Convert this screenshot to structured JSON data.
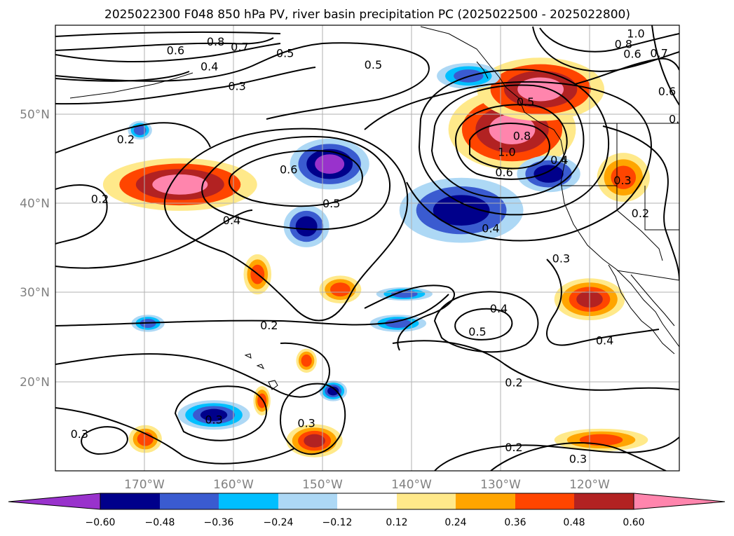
{
  "title": "2025022300 F048 850 hPa PV, river basin precipitation PC (2025022500 - 2025022800)",
  "colors": {
    "levels": [
      "#9932cc",
      "#00008b",
      "#3a5bd0",
      "#00bfff",
      "#add8f5",
      "#ffffff",
      "#ffe98a",
      "#ffa500",
      "#ff4500",
      "#b22222",
      "#ff85ad"
    ],
    "contour": "#000000",
    "grid": "#b0b0b0",
    "tick_text": "#808080"
  },
  "chart_data": {
    "type": "map",
    "projection": "lat-lon",
    "lon_ticks": [
      "170°W",
      "160°W",
      "150°W",
      "140°W",
      "130°W",
      "120°W"
    ],
    "lat_ticks": [
      "50°N",
      "40°N",
      "30°N",
      "20°N"
    ],
    "grid": true,
    "colorbar": {
      "ticks": [
        "−0.60",
        "−0.48",
        "−0.36",
        "−0.24",
        "−0.12",
        "0.12",
        "0.24",
        "0.36",
        "0.48",
        "0.60"
      ],
      "extend": "both"
    },
    "contour_labels": [
      {
        "text": "0.8",
        "lon": -162,
        "lat": 58.2
      },
      {
        "text": "0.7",
        "lon": -159.3,
        "lat": 57.6
      },
      {
        "text": "0.6",
        "lon": -166.5,
        "lat": 57.2
      },
      {
        "text": "0.5",
        "lon": -154.2,
        "lat": 56.9
      },
      {
        "text": "0.4",
        "lon": -162.7,
        "lat": 55.4
      },
      {
        "text": "0.3",
        "lon": -159.6,
        "lat": 53.2
      },
      {
        "text": "0.5",
        "lon": -144.3,
        "lat": 55.6
      },
      {
        "text": "1.0",
        "lon": -114.8,
        "lat": 59.1
      },
      {
        "text": "0.8",
        "lon": -116.2,
        "lat": 57.9
      },
      {
        "text": "0.7",
        "lon": -112.2,
        "lat": 56.9
      },
      {
        "text": "0.6",
        "lon": -115.2,
        "lat": 56.8
      },
      {
        "text": "0.6",
        "lon": -111.3,
        "lat": 52.6
      },
      {
        "text": "0.",
        "lon": -110.5,
        "lat": 49.5
      },
      {
        "text": "0.5",
        "lon": -127.2,
        "lat": 51.4
      },
      {
        "text": "0.8",
        "lon": -127.6,
        "lat": 47.6
      },
      {
        "text": "1.0",
        "lon": -129.3,
        "lat": 45.8
      },
      {
        "text": "0.6",
        "lon": -129.6,
        "lat": 43.5
      },
      {
        "text": "0.4",
        "lon": -123.4,
        "lat": 44.9
      },
      {
        "text": "0.2",
        "lon": -172.1,
        "lat": 47.2
      },
      {
        "text": "0.2",
        "lon": -175,
        "lat": 40.5
      },
      {
        "text": "0.6",
        "lon": -153.8,
        "lat": 43.8
      },
      {
        "text": "0.5",
        "lon": -149,
        "lat": 40
      },
      {
        "text": "0.4",
        "lon": -160.2,
        "lat": 38.1
      },
      {
        "text": "0.4",
        "lon": -131.1,
        "lat": 37.2
      },
      {
        "text": "0.3",
        "lon": -116.3,
        "lat": 42.6
      },
      {
        "text": "0.2",
        "lon": -114.3,
        "lat": 38.9
      },
      {
        "text": "0.3",
        "lon": -123.2,
        "lat": 33.8
      },
      {
        "text": "0.4",
        "lon": -130.2,
        "lat": 28.2
      },
      {
        "text": "0.5",
        "lon": -132.6,
        "lat": 25.6
      },
      {
        "text": "0.4",
        "lon": -118.3,
        "lat": 24.6
      },
      {
        "text": "0.2",
        "lon": -156,
        "lat": 26.3
      },
      {
        "text": "0.2",
        "lon": -128.5,
        "lat": 19.9
      },
      {
        "text": "0.3",
        "lon": -162.2,
        "lat": 15.7
      },
      {
        "text": "0.3",
        "lon": -177.3,
        "lat": 14.1
      },
      {
        "text": "0.3",
        "lon": -151.8,
        "lat": 15.3
      },
      {
        "text": "0.2",
        "lon": -128.5,
        "lat": 12.6
      },
      {
        "text": "0.3",
        "lon": -121.3,
        "lat": 11.3
      }
    ],
    "shaded_regions": [
      {
        "name": "pink-north-pacific-west",
        "lon": -166,
        "lat": 42.1,
        "rx": 8.5,
        "ry": 2.8,
        "levels": [
          8,
          9,
          10
        ]
      },
      {
        "name": "pink-pnw-coast",
        "lon": -128.7,
        "lat": 48.3,
        "rx": 7,
        "ry": 4.4,
        "levels": [
          8,
          9,
          10
        ]
      },
      {
        "name": "pink-bc-coast",
        "lon": -125.5,
        "lat": 52.8,
        "rx": 7,
        "ry": 3.4,
        "levels": [
          8,
          9,
          10
        ]
      },
      {
        "name": "red-california-inland",
        "lon": -116.2,
        "lat": 42.9,
        "rx": 2.8,
        "ry": 2.6,
        "levels": [
          7,
          8
        ]
      },
      {
        "name": "red-baja-offshore",
        "lon": -120,
        "lat": 29.2,
        "rx": 3.8,
        "ry": 2.2,
        "levels": [
          7,
          8,
          9
        ]
      },
      {
        "name": "red-central-32n",
        "lon": -157.3,
        "lat": 32,
        "rx": 1.4,
        "ry": 2.1,
        "levels": [
          7,
          8
        ]
      },
      {
        "name": "red-central-30n",
        "lon": -148,
        "lat": 30.3,
        "rx": 2.2,
        "ry": 1.4,
        "levels": [
          7,
          8
        ]
      },
      {
        "name": "red-south-13n",
        "lon": -150.9,
        "lat": 13.3,
        "rx": 3,
        "ry": 1.7,
        "levels": [
          7,
          8,
          9
        ]
      },
      {
        "name": "red-east-13n",
        "lon": -118.7,
        "lat": 13.4,
        "rx": 5.1,
        "ry": 1.1,
        "levels": [
          7,
          8
        ]
      },
      {
        "name": "red-west-13n",
        "lon": -169.9,
        "lat": 13.5,
        "rx": 1.7,
        "ry": 1.4,
        "levels": [
          7,
          8
        ]
      },
      {
        "name": "red-south-21n",
        "lon": -151.8,
        "lat": 22.3,
        "rx": 1,
        "ry": 1.2,
        "levels": [
          7,
          8
        ]
      },
      {
        "name": "red-south-18n",
        "lon": -156.8,
        "lat": 17.8,
        "rx": 0.8,
        "ry": 1.5,
        "levels": [
          7,
          8
        ]
      },
      {
        "name": "blue-central-45n",
        "lon": -149.2,
        "lat": 44.4,
        "rx": 4.3,
        "ry": 2.7,
        "levels": [
          2,
          1,
          0
        ]
      },
      {
        "name": "blue-central-37n",
        "lon": -151.8,
        "lat": 37.4,
        "rx": 2.4,
        "ry": 2.2,
        "levels": [
          2,
          1
        ]
      },
      {
        "name": "blue-east-39n",
        "lon": -134.4,
        "lat": 39.2,
        "rx": 6.8,
        "ry": 3.5,
        "levels": [
          2,
          1
        ]
      },
      {
        "name": "blue-coast-43n",
        "lon": -124.6,
        "lat": 43.3,
        "rx": 3.4,
        "ry": 1.9,
        "levels": [
          2,
          1
        ]
      },
      {
        "name": "blue-east-54n",
        "lon": -133.6,
        "lat": 54.3,
        "rx": 3.4,
        "ry": 1.3,
        "levels": [
          3,
          2
        ]
      },
      {
        "name": "blue-west-16n",
        "lon": -162.2,
        "lat": 16.2,
        "rx": 3.9,
        "ry": 1.5,
        "levels": [
          3,
          2,
          1
        ]
      },
      {
        "name": "blue-south-19n",
        "lon": -148.8,
        "lat": 18.9,
        "rx": 1.4,
        "ry": 1,
        "levels": [
          3,
          2,
          1
        ]
      },
      {
        "name": "blue-30n",
        "lon": -140.8,
        "lat": 29.8,
        "rx": 3,
        "ry": 0.6,
        "levels": [
          3,
          2
        ]
      },
      {
        "name": "blue-26n",
        "lon": -141.5,
        "lat": 26.5,
        "rx": 3,
        "ry": 0.8,
        "levels": [
          3,
          2
        ]
      },
      {
        "name": "blue-west-26n",
        "lon": -169.6,
        "lat": 26.5,
        "rx": 1.7,
        "ry": 0.8,
        "levels": [
          3,
          2
        ]
      },
      {
        "name": "blue-west-48n",
        "lon": -170.5,
        "lat": 48.2,
        "rx": 1.2,
        "ry": 0.9,
        "levels": [
          3,
          2
        ]
      }
    ]
  }
}
